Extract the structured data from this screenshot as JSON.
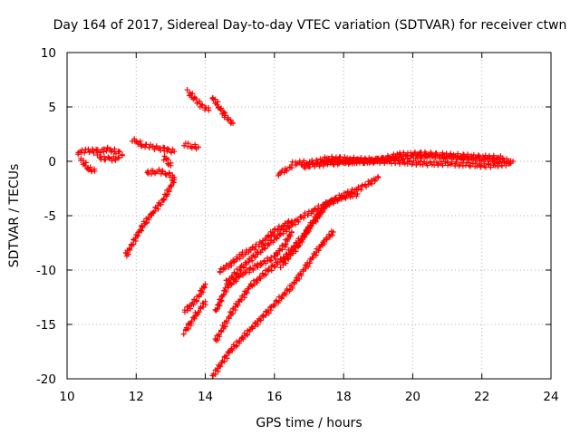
{
  "chart_data": {
    "type": "scatter",
    "title": "Day 164 of 2017, Sidereal Day-to-day VTEC variation (SDTVAR) for receiver ctwn",
    "xlabel": "GPS time / hours",
    "ylabel": "SDTVAR / TECUs",
    "xlim": [
      10,
      24
    ],
    "ylim": [
      -20,
      10
    ],
    "xticks": [
      "10",
      "12",
      "14",
      "16",
      "18",
      "20",
      "22",
      "24"
    ],
    "yticks": [
      "10",
      "5",
      "0",
      "-5",
      "-10",
      "-15",
      "-20"
    ],
    "grid": true,
    "legend": "none",
    "marker": "+",
    "color": "#ff0000",
    "series": [
      {
        "x": [
          10.3,
          10.6,
          10.9,
          11.2,
          11.5,
          11.6
        ],
        "y": [
          0.8,
          1.0,
          0.9,
          1.1,
          0.8,
          0.6
        ]
      },
      {
        "x": [
          10.4,
          10.6,
          10.8
        ],
        "y": [
          0.2,
          -0.6,
          -0.9
        ]
      },
      {
        "x": [
          10.9,
          11.2,
          11.5
        ],
        "y": [
          0.4,
          0.2,
          0.3
        ]
      },
      {
        "x": [
          11.9,
          12.2,
          12.5,
          12.8,
          13.1
        ],
        "y": [
          2.0,
          1.5,
          1.3,
          1.1,
          0.9
        ]
      },
      {
        "x": [
          12.3,
          12.6,
          12.9,
          13.1
        ],
        "y": [
          -1.1,
          -0.9,
          -1.1,
          -1.5
        ]
      },
      {
        "x": [
          12.8,
          12.9,
          13.0
        ],
        "y": [
          0.4,
          0.0,
          -0.4
        ]
      },
      {
        "x": [
          13.4,
          13.6,
          13.8
        ],
        "y": [
          1.6,
          1.4,
          1.3
        ]
      },
      {
        "x": [
          13.5,
          13.7,
          13.9,
          14.1
        ],
        "y": [
          6.4,
          5.7,
          5.1,
          4.7
        ]
      },
      {
        "x": [
          14.2,
          14.4,
          14.6,
          14.8
        ],
        "y": [
          5.9,
          5.0,
          4.1,
          3.5
        ]
      },
      {
        "x": [
          11.7,
          11.9,
          12.2,
          12.5,
          12.8,
          13.1
        ],
        "y": [
          -8.7,
          -7.5,
          -5.9,
          -4.6,
          -3.5,
          -1.7
        ]
      },
      {
        "x": [
          13.4,
          13.6,
          13.8,
          14.0
        ],
        "y": [
          -13.8,
          -13.2,
          -12.5,
          -11.3
        ]
      },
      {
        "x": [
          13.4,
          13.6,
          13.8,
          14.0
        ],
        "y": [
          -15.7,
          -14.7,
          -13.8,
          -12.9
        ]
      },
      {
        "x": [
          14.3,
          14.6,
          15.0,
          15.5,
          16.0,
          16.3,
          16.5
        ],
        "y": [
          -13.8,
          -11.7,
          -10.5,
          -9.6,
          -8.8,
          -7.6,
          -6.5
        ]
      },
      {
        "x": [
          14.4,
          14.7,
          15.1,
          15.6,
          16.0,
          16.5
        ],
        "y": [
          -10.1,
          -9.5,
          -8.5,
          -7.6,
          -6.4,
          -5.5
        ]
      },
      {
        "x": [
          14.6,
          15.0,
          15.6,
          16.2,
          16.8,
          17.4,
          18.0,
          18.6,
          19.0
        ],
        "y": [
          -11.2,
          -9.9,
          -8.2,
          -6.6,
          -5.1,
          -4.1,
          -3.1,
          -2.3,
          -1.5
        ]
      },
      {
        "x": [
          14.3,
          14.8,
          15.3,
          15.8,
          16.3,
          16.8,
          17.2,
          17.6
        ],
        "y": [
          -16.5,
          -13.7,
          -11.5,
          -10.1,
          -8.8,
          -7.0,
          -5.3,
          -3.7
        ]
      },
      {
        "x": [
          16.2,
          16.7,
          17.1,
          17.5,
          18.0,
          18.4
        ],
        "y": [
          -9.6,
          -7.7,
          -5.6,
          -3.9,
          -3.3,
          -3.0
        ]
      },
      {
        "x": [
          14.2,
          14.7,
          15.3,
          15.9,
          16.5,
          17.0,
          17.4,
          17.7
        ],
        "y": [
          -19.8,
          -17.5,
          -15.5,
          -13.5,
          -11.5,
          -9.3,
          -7.5,
          -6.5
        ]
      },
      {
        "x": [
          16.1,
          16.3,
          16.5
        ],
        "y": [
          -1.2,
          -0.8,
          -0.6
        ]
      },
      {
        "x": [
          16.5,
          17.0,
          17.5,
          18.0,
          18.5,
          19.0,
          19.5,
          20.0,
          20.5,
          21.0,
          21.5,
          22.0,
          22.5,
          22.9
        ],
        "y": [
          -0.2,
          -0.1,
          0.1,
          0.0,
          0.0,
          0.1,
          0.3,
          0.4,
          0.5,
          0.4,
          0.3,
          0.2,
          0.1,
          0.0
        ]
      },
      {
        "x": [
          16.8,
          17.2,
          17.6,
          18.0,
          18.6,
          19.2,
          19.8,
          20.4,
          21.0,
          21.6,
          22.2,
          22.8
        ],
        "y": [
          -0.5,
          -0.3,
          -0.2,
          -0.1,
          0.0,
          0.0,
          -0.1,
          -0.2,
          -0.2,
          -0.3,
          -0.4,
          -0.2
        ]
      },
      {
        "x": [
          17.4,
          17.8,
          18.2,
          19.0,
          19.6,
          20.2,
          20.8,
          21.4,
          22.0,
          22.6
        ],
        "y": [
          0.2,
          0.3,
          0.2,
          0.1,
          0.6,
          0.7,
          0.6,
          0.5,
          0.4,
          0.3
        ]
      }
    ]
  }
}
